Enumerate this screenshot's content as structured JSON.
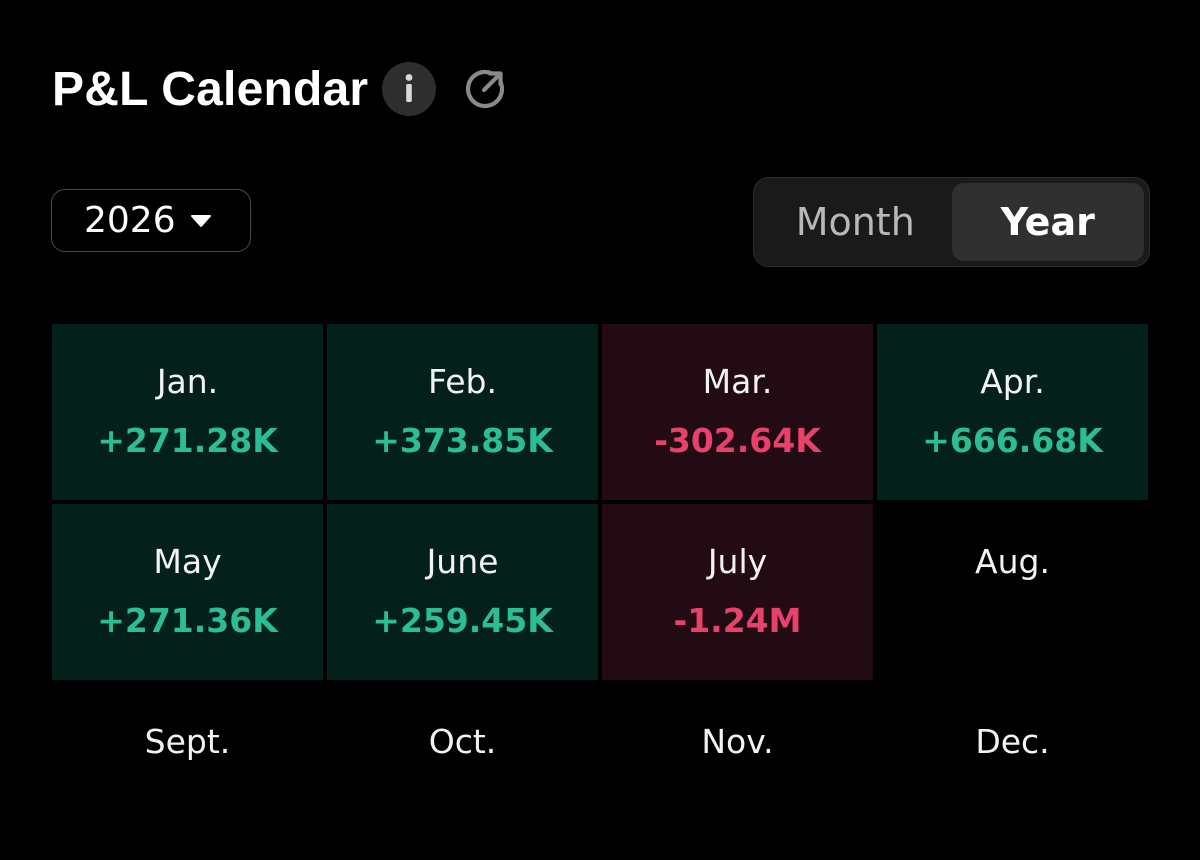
{
  "header": {
    "title": "P&L Calendar",
    "info_icon": "info-icon",
    "share_icon": "share-arrow-icon"
  },
  "year_select": {
    "value": "2026"
  },
  "view_toggle": {
    "options": [
      "Month",
      "Year"
    ],
    "selected": "Year"
  },
  "colors": {
    "positive": "#2bbd94",
    "negative": "#e8416c",
    "positive_bg": "#04201b",
    "negative_bg": "#230b13"
  },
  "months": [
    {
      "label": "Jan.",
      "pnl": "+271.28K",
      "status": "pos"
    },
    {
      "label": "Feb.",
      "pnl": "+373.85K",
      "status": "pos"
    },
    {
      "label": "Mar.",
      "pnl": "-302.64K",
      "status": "neg"
    },
    {
      "label": "Apr.",
      "pnl": "+666.68K",
      "status": "pos"
    },
    {
      "label": "May",
      "pnl": "+271.36K",
      "status": "pos"
    },
    {
      "label": "June",
      "pnl": "+259.45K",
      "status": "pos"
    },
    {
      "label": "July",
      "pnl": "-1.24M",
      "status": "neg"
    },
    {
      "label": "Aug.",
      "pnl": "",
      "status": "none"
    },
    {
      "label": "Sept.",
      "pnl": "",
      "status": "none"
    },
    {
      "label": "Oct.",
      "pnl": "",
      "status": "none"
    },
    {
      "label": "Nov.",
      "pnl": "",
      "status": "none"
    },
    {
      "label": "Dec.",
      "pnl": "",
      "status": "none"
    }
  ]
}
